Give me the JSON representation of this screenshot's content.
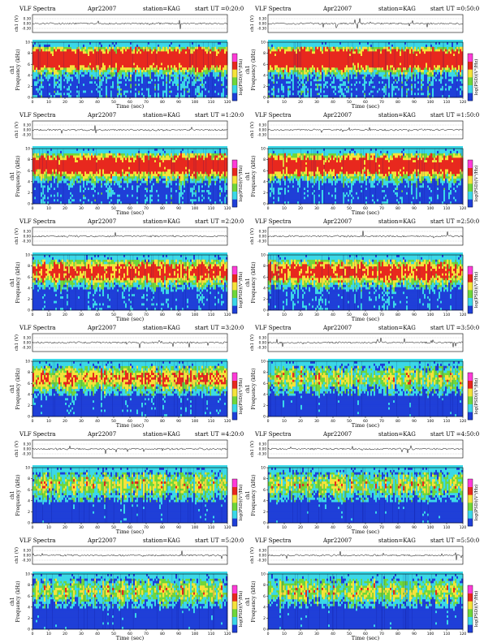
{
  "title_prefix": "VLF Spectra",
  "date": "Apr22007",
  "station": "station=KAG",
  "xlabel": "Time (sec)",
  "ylabel_main": "Frequency (kHz)",
  "ylabel_ch": "ch1",
  "ylabel_top": "ch1 (V)",
  "colorbar_label": "log(PSD)(V²/Hz)",
  "top_ticks": [
    "0.30",
    "0.00",
    "-0.30"
  ],
  "x_ticks": [
    "0",
    "10",
    "20",
    "30",
    "40",
    "50",
    "60",
    "70",
    "80",
    "90",
    "100",
    "110",
    "120"
  ],
  "y_ticks": [
    "0",
    "2",
    "4",
    "6",
    "8",
    "10"
  ],
  "chart_data": [
    {
      "type": "heatmap",
      "title": "VLF Spectra Apr22007 station=KAG start UT =0:20:0",
      "start": "start UT =0:20:0",
      "xlim": [
        0,
        120
      ],
      "ylim": [
        0,
        10
      ],
      "intensity": "very high"
    },
    {
      "type": "heatmap",
      "title": "VLF Spectra Apr22007 station=KAG start UT =0:50:0",
      "start": "start UT =0:50:0",
      "xlim": [
        0,
        120
      ],
      "ylim": [
        0,
        10
      ],
      "intensity": "very high"
    },
    {
      "type": "heatmap",
      "title": "VLF Spectra Apr22007 station=KAG start UT =1:20:0",
      "start": "start UT =1:20:0",
      "xlim": [
        0,
        120
      ],
      "ylim": [
        0,
        10
      ],
      "intensity": "high"
    },
    {
      "type": "heatmap",
      "title": "VLF Spectra Apr22007 station=KAG start UT =1:50:0",
      "start": "start UT =1:50:0",
      "xlim": [
        0,
        120
      ],
      "ylim": [
        0,
        10
      ],
      "intensity": "high"
    },
    {
      "type": "heatmap",
      "title": "VLF Spectra Apr22007 station=KAG start UT =2:20:0",
      "start": "start UT =2:20:0",
      "xlim": [
        0,
        120
      ],
      "ylim": [
        0,
        10
      ],
      "intensity": "medium"
    },
    {
      "type": "heatmap",
      "title": "VLF Spectra Apr22007 station=KAG start UT =2:50:0",
      "start": "start UT =2:50:0",
      "xlim": [
        0,
        120
      ],
      "ylim": [
        0,
        10
      ],
      "intensity": "medium"
    },
    {
      "type": "heatmap",
      "title": "VLF Spectra Apr22007 station=KAG start UT =3:20:0",
      "start": "start UT =3:20:0",
      "xlim": [
        0,
        120
      ],
      "ylim": [
        0,
        10
      ],
      "intensity": "medium-low"
    },
    {
      "type": "heatmap",
      "title": "VLF Spectra Apr22007 station=KAG start UT =3:50:0",
      "start": "start UT =3:50:0",
      "xlim": [
        0,
        120
      ],
      "ylim": [
        0,
        10
      ],
      "intensity": "low"
    },
    {
      "type": "heatmap",
      "title": "VLF Spectra Apr22007 station=KAG start UT =4:20:0",
      "start": "start UT =4:20:0",
      "xlim": [
        0,
        120
      ],
      "ylim": [
        0,
        10
      ],
      "intensity": "low"
    },
    {
      "type": "heatmap",
      "title": "VLF Spectra Apr22007 station=KAG start UT =4:50:0",
      "start": "start UT =4:50:0",
      "xlim": [
        0,
        120
      ],
      "ylim": [
        0,
        10
      ],
      "intensity": "low"
    },
    {
      "type": "heatmap",
      "title": "VLF Spectra Apr22007 station=KAG start UT =5:20:0",
      "start": "start UT =5:20:0",
      "xlim": [
        0,
        120
      ],
      "ylim": [
        0,
        10
      ],
      "intensity": "low"
    },
    {
      "type": "heatmap",
      "title": "VLF Spectra Apr22007 station=KAG start UT =5:50:0",
      "start": "start UT =5:50:0",
      "xlim": [
        0,
        120
      ],
      "ylim": [
        0,
        10
      ],
      "intensity": "low"
    }
  ],
  "colors": {
    "red": "#e8281e",
    "yellow": "#f6e33a",
    "green": "#6fd73a",
    "cyan": "#3bd8e8",
    "blue": "#1f3fd8",
    "navy": "#0a0a80",
    "magenta": "#ff3bd8"
  }
}
